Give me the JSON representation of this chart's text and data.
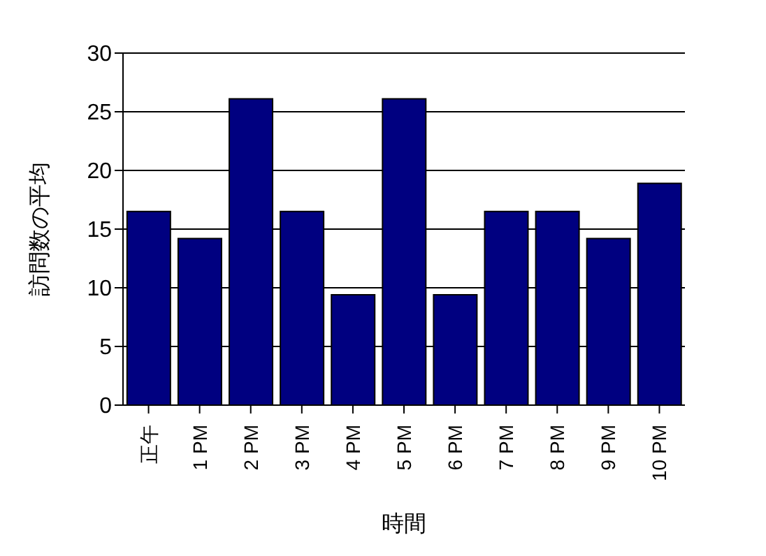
{
  "chart_data": {
    "type": "bar",
    "xlabel": "時間",
    "ylabel": "訪問数の平均",
    "categories": [
      "正午",
      "1 PM",
      "2 PM",
      "3 PM",
      "4 PM",
      "5 PM",
      "6 PM",
      "7 PM",
      "8 PM",
      "9 PM",
      "10 PM"
    ],
    "values": [
      16.5,
      14.2,
      26.1,
      16.5,
      9.4,
      26.1,
      9.4,
      16.5,
      16.5,
      14.2,
      18.9
    ],
    "color": "#000080",
    "ylim": [
      0,
      30
    ],
    "yticks": [
      0,
      5,
      10,
      15,
      20,
      25,
      30
    ],
    "grid": "y"
  }
}
